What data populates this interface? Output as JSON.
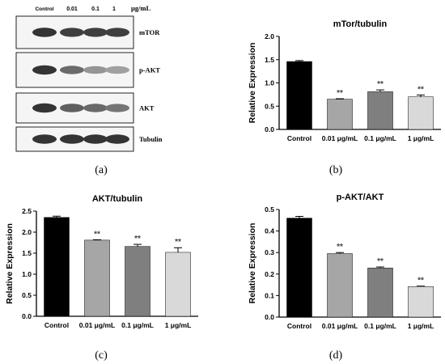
{
  "blot": {
    "lane_labels": [
      "Control",
      "0.01",
      "0.1",
      "1"
    ],
    "unit": "μg/mL",
    "rows": [
      {
        "label": "mTOR",
        "bands": [
          0.85,
          0.8,
          0.8,
          0.8
        ]
      },
      {
        "label": "p-AKT",
        "bands": [
          0.85,
          0.6,
          0.4,
          0.35
        ]
      },
      {
        "label": "AKT",
        "bands": [
          0.85,
          0.65,
          0.6,
          0.55
        ]
      },
      {
        "label": "Tubulin",
        "bands": [
          0.85,
          0.85,
          0.85,
          0.85
        ]
      }
    ]
  },
  "panel_labels": [
    "(a)",
    "(b)",
    "(c)",
    "(d)"
  ],
  "colors": [
    "#000000",
    "#a6a6a6",
    "#7f7f7f",
    "#d9d9d9"
  ],
  "chart_data": [
    {
      "type": "bar",
      "title": "mTor/tubulin",
      "ylabel": "Relative Expression",
      "categories": [
        "Control",
        "0.01 μg/mL",
        "0.1 μg/mL",
        "1 μg/mL"
      ],
      "values": [
        1.46,
        0.65,
        0.81,
        0.7
      ],
      "errors": [
        0.02,
        0.01,
        0.04,
        0.04
      ],
      "annotations": [
        "",
        "**",
        "**",
        "**"
      ],
      "ylim": [
        0,
        2.0
      ],
      "yticks": [
        "0.0",
        "0.5",
        "1.0",
        "1.5",
        "2.0"
      ]
    },
    {
      "type": "bar",
      "title": "AKT/tubulin",
      "ylabel": "Relative Expression",
      "categories": [
        "Control",
        "0.01 μg/mL",
        "0.1 μg/mL",
        "1 μg/mL"
      ],
      "values": [
        2.35,
        1.81,
        1.66,
        1.52
      ],
      "errors": [
        0.03,
        0.01,
        0.05,
        0.11
      ],
      "annotations": [
        "",
        "**",
        "**",
        "**"
      ],
      "ylim": [
        0,
        2.5
      ],
      "yticks": [
        "0.0",
        "0.5",
        "1.0",
        "1.5",
        "2.0",
        "2.5"
      ]
    },
    {
      "type": "bar",
      "title": "p-AKT/AKT",
      "ylabel": "Relative Expression",
      "categories": [
        "Control",
        "0.01 μg/mL",
        "0.1 μg/mL",
        "1 μg/mL"
      ],
      "values": [
        0.46,
        0.295,
        0.228,
        0.142
      ],
      "errors": [
        0.008,
        0.005,
        0.005,
        0.002
      ],
      "annotations": [
        "",
        "**",
        "**",
        "**"
      ],
      "ylim": [
        0,
        0.5
      ],
      "yticks": [
        "0.0",
        "0.1",
        "0.2",
        "0.3",
        "0.4",
        "0.5"
      ]
    }
  ]
}
